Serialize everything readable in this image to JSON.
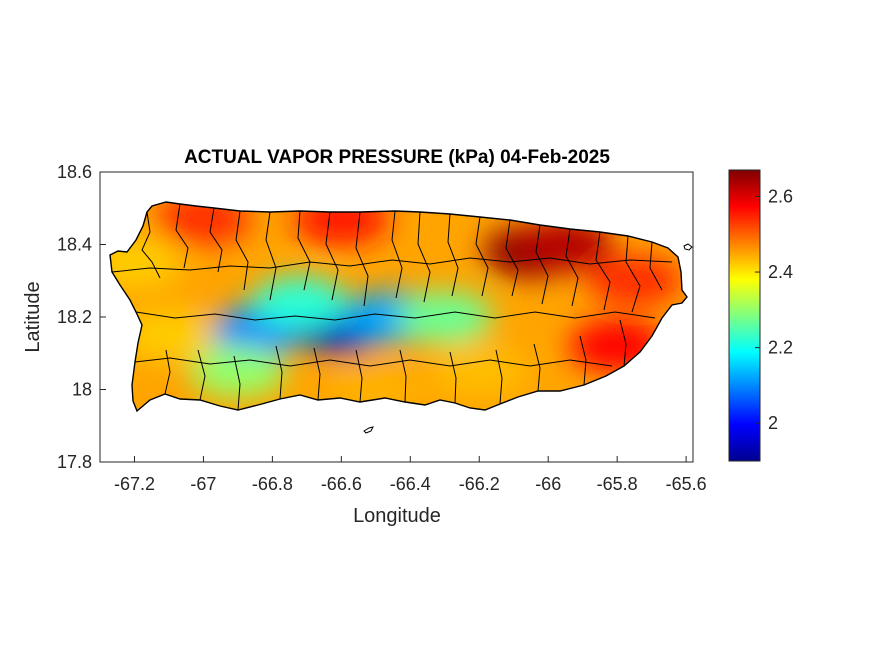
{
  "chart_data": {
    "type": "heatmap",
    "title": "ACTUAL VAPOR PRESSURE (kPa) 04-Feb-2025",
    "xlabel": "Longitude",
    "ylabel": "Latitude",
    "xlim": [
      -67.3,
      -65.58
    ],
    "ylim": [
      17.8,
      18.6
    ],
    "x_ticks": [
      -67.2,
      -67,
      -66.8,
      -66.6,
      -66.4,
      -66.2,
      -66,
      -65.8,
      -65.6
    ],
    "x_tick_labels": [
      "-67.2",
      "-67",
      "-66.8",
      "-66.6",
      "-66.4",
      "-66.2",
      "-66",
      "-65.8",
      "-65.6"
    ],
    "y_ticks": [
      17.8,
      18,
      18.2,
      18.4,
      18.6
    ],
    "y_tick_labels": [
      "17.8",
      "18",
      "18.2",
      "18.4",
      "18.6"
    ],
    "colorbar": {
      "colormap": "jet",
      "range": [
        1.9,
        2.67
      ],
      "ticks": [
        2,
        2.2,
        2.4,
        2.6
      ],
      "tick_labels": [
        "2",
        "2.2",
        "2.4",
        "2.6"
      ]
    },
    "value_regions": [
      {
        "lon": -66.05,
        "lat": 18.38,
        "value": 2.66
      },
      {
        "lon": -65.95,
        "lat": 18.4,
        "value": 2.63
      },
      {
        "lon": -66.6,
        "lat": 18.47,
        "value": 2.56
      },
      {
        "lon": -67.0,
        "lat": 18.47,
        "value": 2.54
      },
      {
        "lon": -65.8,
        "lat": 18.12,
        "value": 2.57
      },
      {
        "lon": -65.75,
        "lat": 18.3,
        "value": 2.54
      },
      {
        "lon": -66.6,
        "lat": 18.17,
        "value": 1.95
      },
      {
        "lon": -66.85,
        "lat": 18.16,
        "value": 2.1
      },
      {
        "lon": -66.45,
        "lat": 18.2,
        "value": 2.12
      },
      {
        "lon": -66.72,
        "lat": 18.24,
        "value": 2.22
      },
      {
        "lon": -66.3,
        "lat": 18.2,
        "value": 2.27
      },
      {
        "lon": -67.1,
        "lat": 18.15,
        "value": 2.42
      },
      {
        "lon": -66.5,
        "lat": 18.0,
        "value": 2.44
      },
      {
        "lon": -66.9,
        "lat": 18.05,
        "value": 2.3
      },
      {
        "lon": -67.2,
        "lat": 18.35,
        "value": 2.42
      },
      {
        "lon": -66.2,
        "lat": 18.05,
        "value": 2.43
      }
    ]
  }
}
